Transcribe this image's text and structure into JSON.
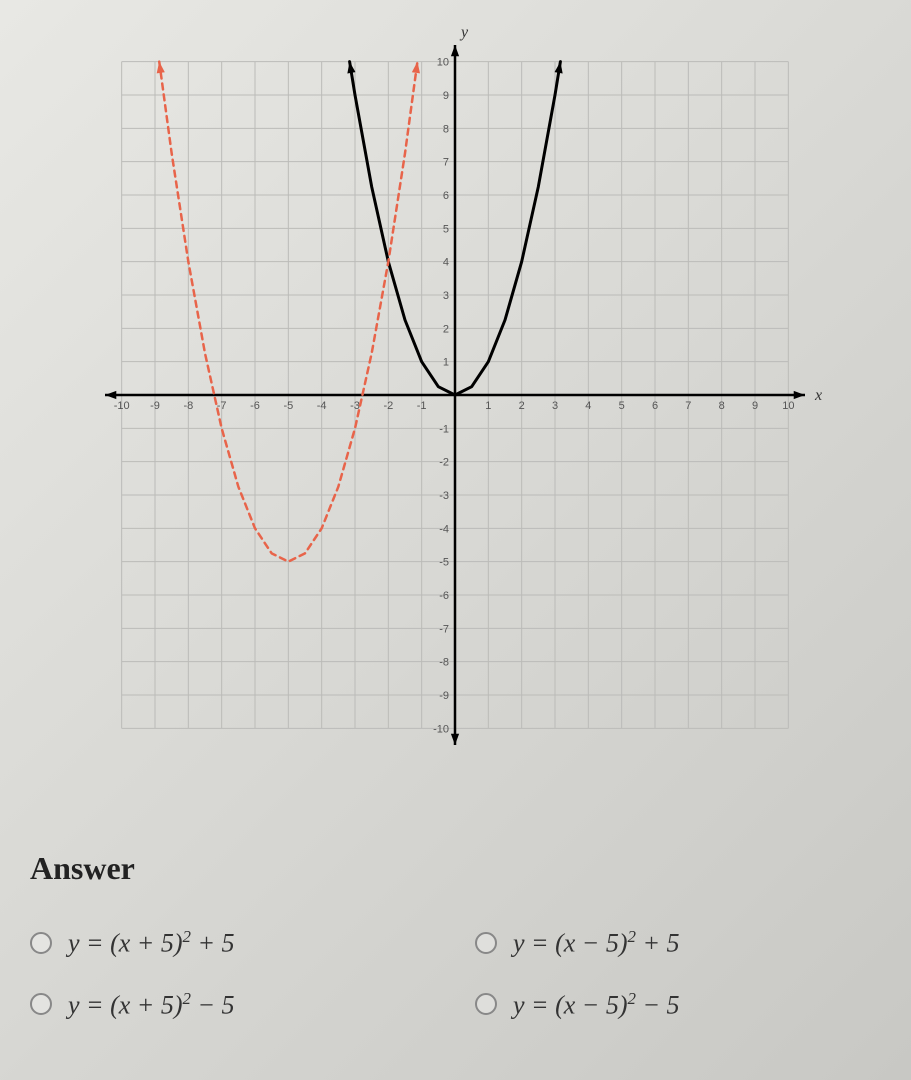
{
  "graph": {
    "type": "line",
    "xlim": [
      -10.5,
      10.5
    ],
    "ylim": [
      -10.5,
      10.5
    ],
    "xtick_step": 1,
    "ytick_step": 1,
    "xtick_labels": [
      -10,
      -9,
      -8,
      -7,
      -6,
      -5,
      -4,
      -3,
      -2,
      -1,
      1,
      2,
      3,
      4,
      5,
      6,
      7,
      8,
      9,
      10
    ],
    "ytick_labels": [
      -10,
      -9,
      -8,
      -7,
      -6,
      -5,
      -4,
      -3,
      -2,
      -1,
      1,
      2,
      3,
      4,
      5,
      6,
      7,
      8,
      9,
      10
    ],
    "x_axis_label": "x",
    "y_axis_label": "y",
    "background_color": "transparent",
    "grid_color": "#bbbbb8",
    "grid_width": 1,
    "axis_color": "#000000",
    "axis_width": 2.5,
    "tick_label_fontsize": 11,
    "tick_label_color": "#555",
    "series": [
      {
        "name": "solid-parabola",
        "color": "#000000",
        "line_width": 3,
        "dash": "none",
        "arrowheads": true,
        "points": [
          [
            -3.162,
            10
          ],
          [
            -3,
            9
          ],
          [
            -2.5,
            6.25
          ],
          [
            -2,
            4
          ],
          [
            -1.5,
            2.25
          ],
          [
            -1,
            1
          ],
          [
            -0.5,
            0.25
          ],
          [
            0,
            0
          ],
          [
            0.5,
            0.25
          ],
          [
            1,
            1
          ],
          [
            1.5,
            2.25
          ],
          [
            2,
            4
          ],
          [
            2.5,
            6.25
          ],
          [
            3,
            9
          ],
          [
            3.162,
            10
          ]
        ]
      },
      {
        "name": "dashed-parabola",
        "color": "#e8644a",
        "line_width": 2.5,
        "dash": "6,5",
        "arrowheads": true,
        "points": [
          [
            -8.873,
            10
          ],
          [
            -8.5,
            7.25
          ],
          [
            -8,
            4
          ],
          [
            -7.5,
            1.25
          ],
          [
            -7,
            -1
          ],
          [
            -6.5,
            -2.75
          ],
          [
            -6,
            -4
          ],
          [
            -5.5,
            -4.75
          ],
          [
            -5,
            -5
          ],
          [
            -4.5,
            -4.75
          ],
          [
            -4,
            -4
          ],
          [
            -3.5,
            -2.75
          ],
          [
            -3,
            -1
          ],
          [
            -2.5,
            1.25
          ],
          [
            -2,
            4
          ],
          [
            -1.5,
            7.25
          ],
          [
            -1.127,
            10
          ]
        ]
      }
    ]
  },
  "answers": {
    "heading": "Answer",
    "options": [
      {
        "id": "opt-a",
        "lhs": "y",
        "rhs_base": "(x + 5)",
        "exp": "2",
        "tail": " + 5"
      },
      {
        "id": "opt-b",
        "lhs": "y",
        "rhs_base": "(x − 5)",
        "exp": "2",
        "tail": " + 5"
      },
      {
        "id": "opt-c",
        "lhs": "y",
        "rhs_base": "(x + 5)",
        "exp": "2",
        "tail": " − 5"
      },
      {
        "id": "opt-d",
        "lhs": "y",
        "rhs_base": "(x − 5)",
        "exp": "2",
        "tail": " − 5"
      }
    ]
  }
}
